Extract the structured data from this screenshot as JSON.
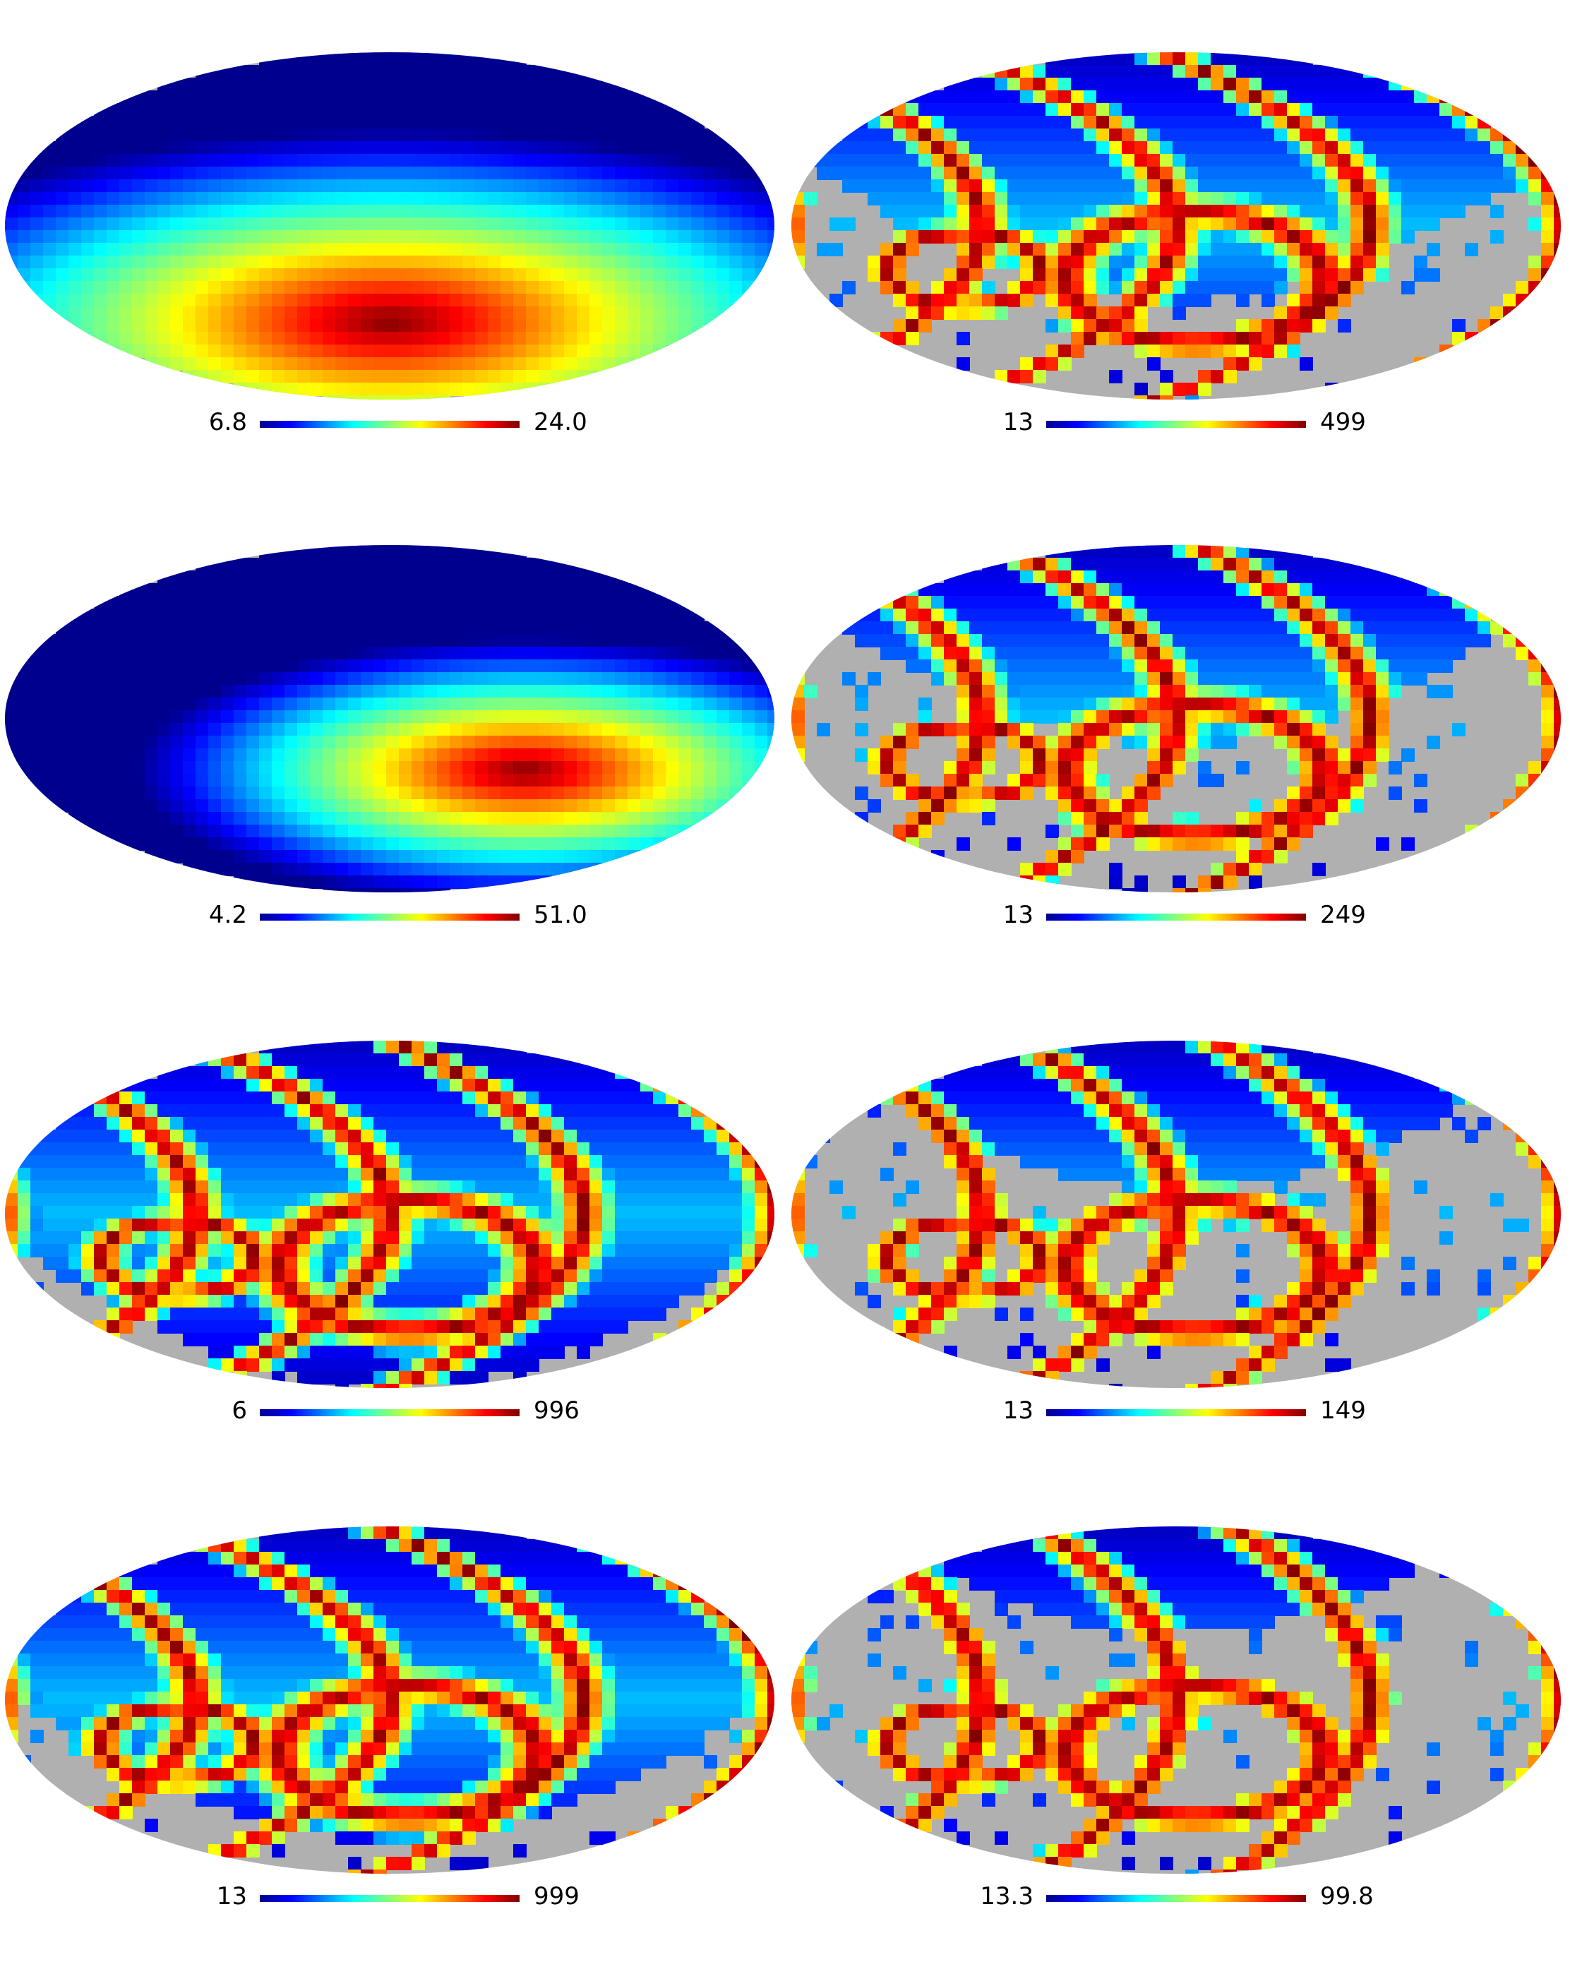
{
  "chart_data": [
    {
      "type": "heatmap",
      "projection": "mollweide",
      "colormap": "jet",
      "masked_color": "#b0b0b0",
      "scale_min": "6.8",
      "scale_max": "24.0",
      "pattern": "smooth",
      "hot_lon": 0.0,
      "hot_lat": -0.55,
      "spread": 1.3,
      "mask_fraction": 0
    },
    {
      "type": "heatmap",
      "projection": "mollweide",
      "colormap": "jet",
      "masked_color": "#b0b0b0",
      "scale_min": "13",
      "scale_max": "499",
      "pattern": "rings",
      "mask_fraction": 0.35,
      "tilt": 0.6
    },
    {
      "type": "heatmap",
      "projection": "mollweide",
      "colormap": "jet",
      "masked_color": "#b0b0b0",
      "scale_min": "4.2",
      "scale_max": "51.0",
      "pattern": "smooth",
      "hot_lon": 0.35,
      "hot_lat": -0.3,
      "spread": 0.9,
      "mask_fraction": 0
    },
    {
      "type": "heatmap",
      "projection": "mollweide",
      "colormap": "jet",
      "masked_color": "#b0b0b0",
      "scale_min": "13",
      "scale_max": "249",
      "pattern": "rings",
      "mask_fraction": 0.5,
      "tilt": 0.5
    },
    {
      "type": "heatmap",
      "projection": "mollweide",
      "colormap": "jet",
      "masked_color": "#b0b0b0",
      "scale_min": "6",
      "scale_max": "996",
      "pattern": "rings",
      "mask_fraction": 0.05,
      "tilt": 0.55
    },
    {
      "type": "heatmap",
      "projection": "mollweide",
      "colormap": "jet",
      "masked_color": "#b0b0b0",
      "scale_min": "13",
      "scale_max": "149",
      "pattern": "rings",
      "mask_fraction": 0.65,
      "tilt": 0.45
    },
    {
      "type": "heatmap",
      "projection": "mollweide",
      "colormap": "jet",
      "masked_color": "#b0b0b0",
      "scale_min": "13",
      "scale_max": "999",
      "pattern": "rings",
      "mask_fraction": 0.15,
      "tilt": 0.6
    },
    {
      "type": "heatmap",
      "projection": "mollweide",
      "colormap": "jet",
      "masked_color": "#b0b0b0",
      "scale_min": "13.3",
      "scale_max": "99.8",
      "pattern": "rings",
      "mask_fraction": 0.78,
      "tilt": 0.4
    }
  ]
}
